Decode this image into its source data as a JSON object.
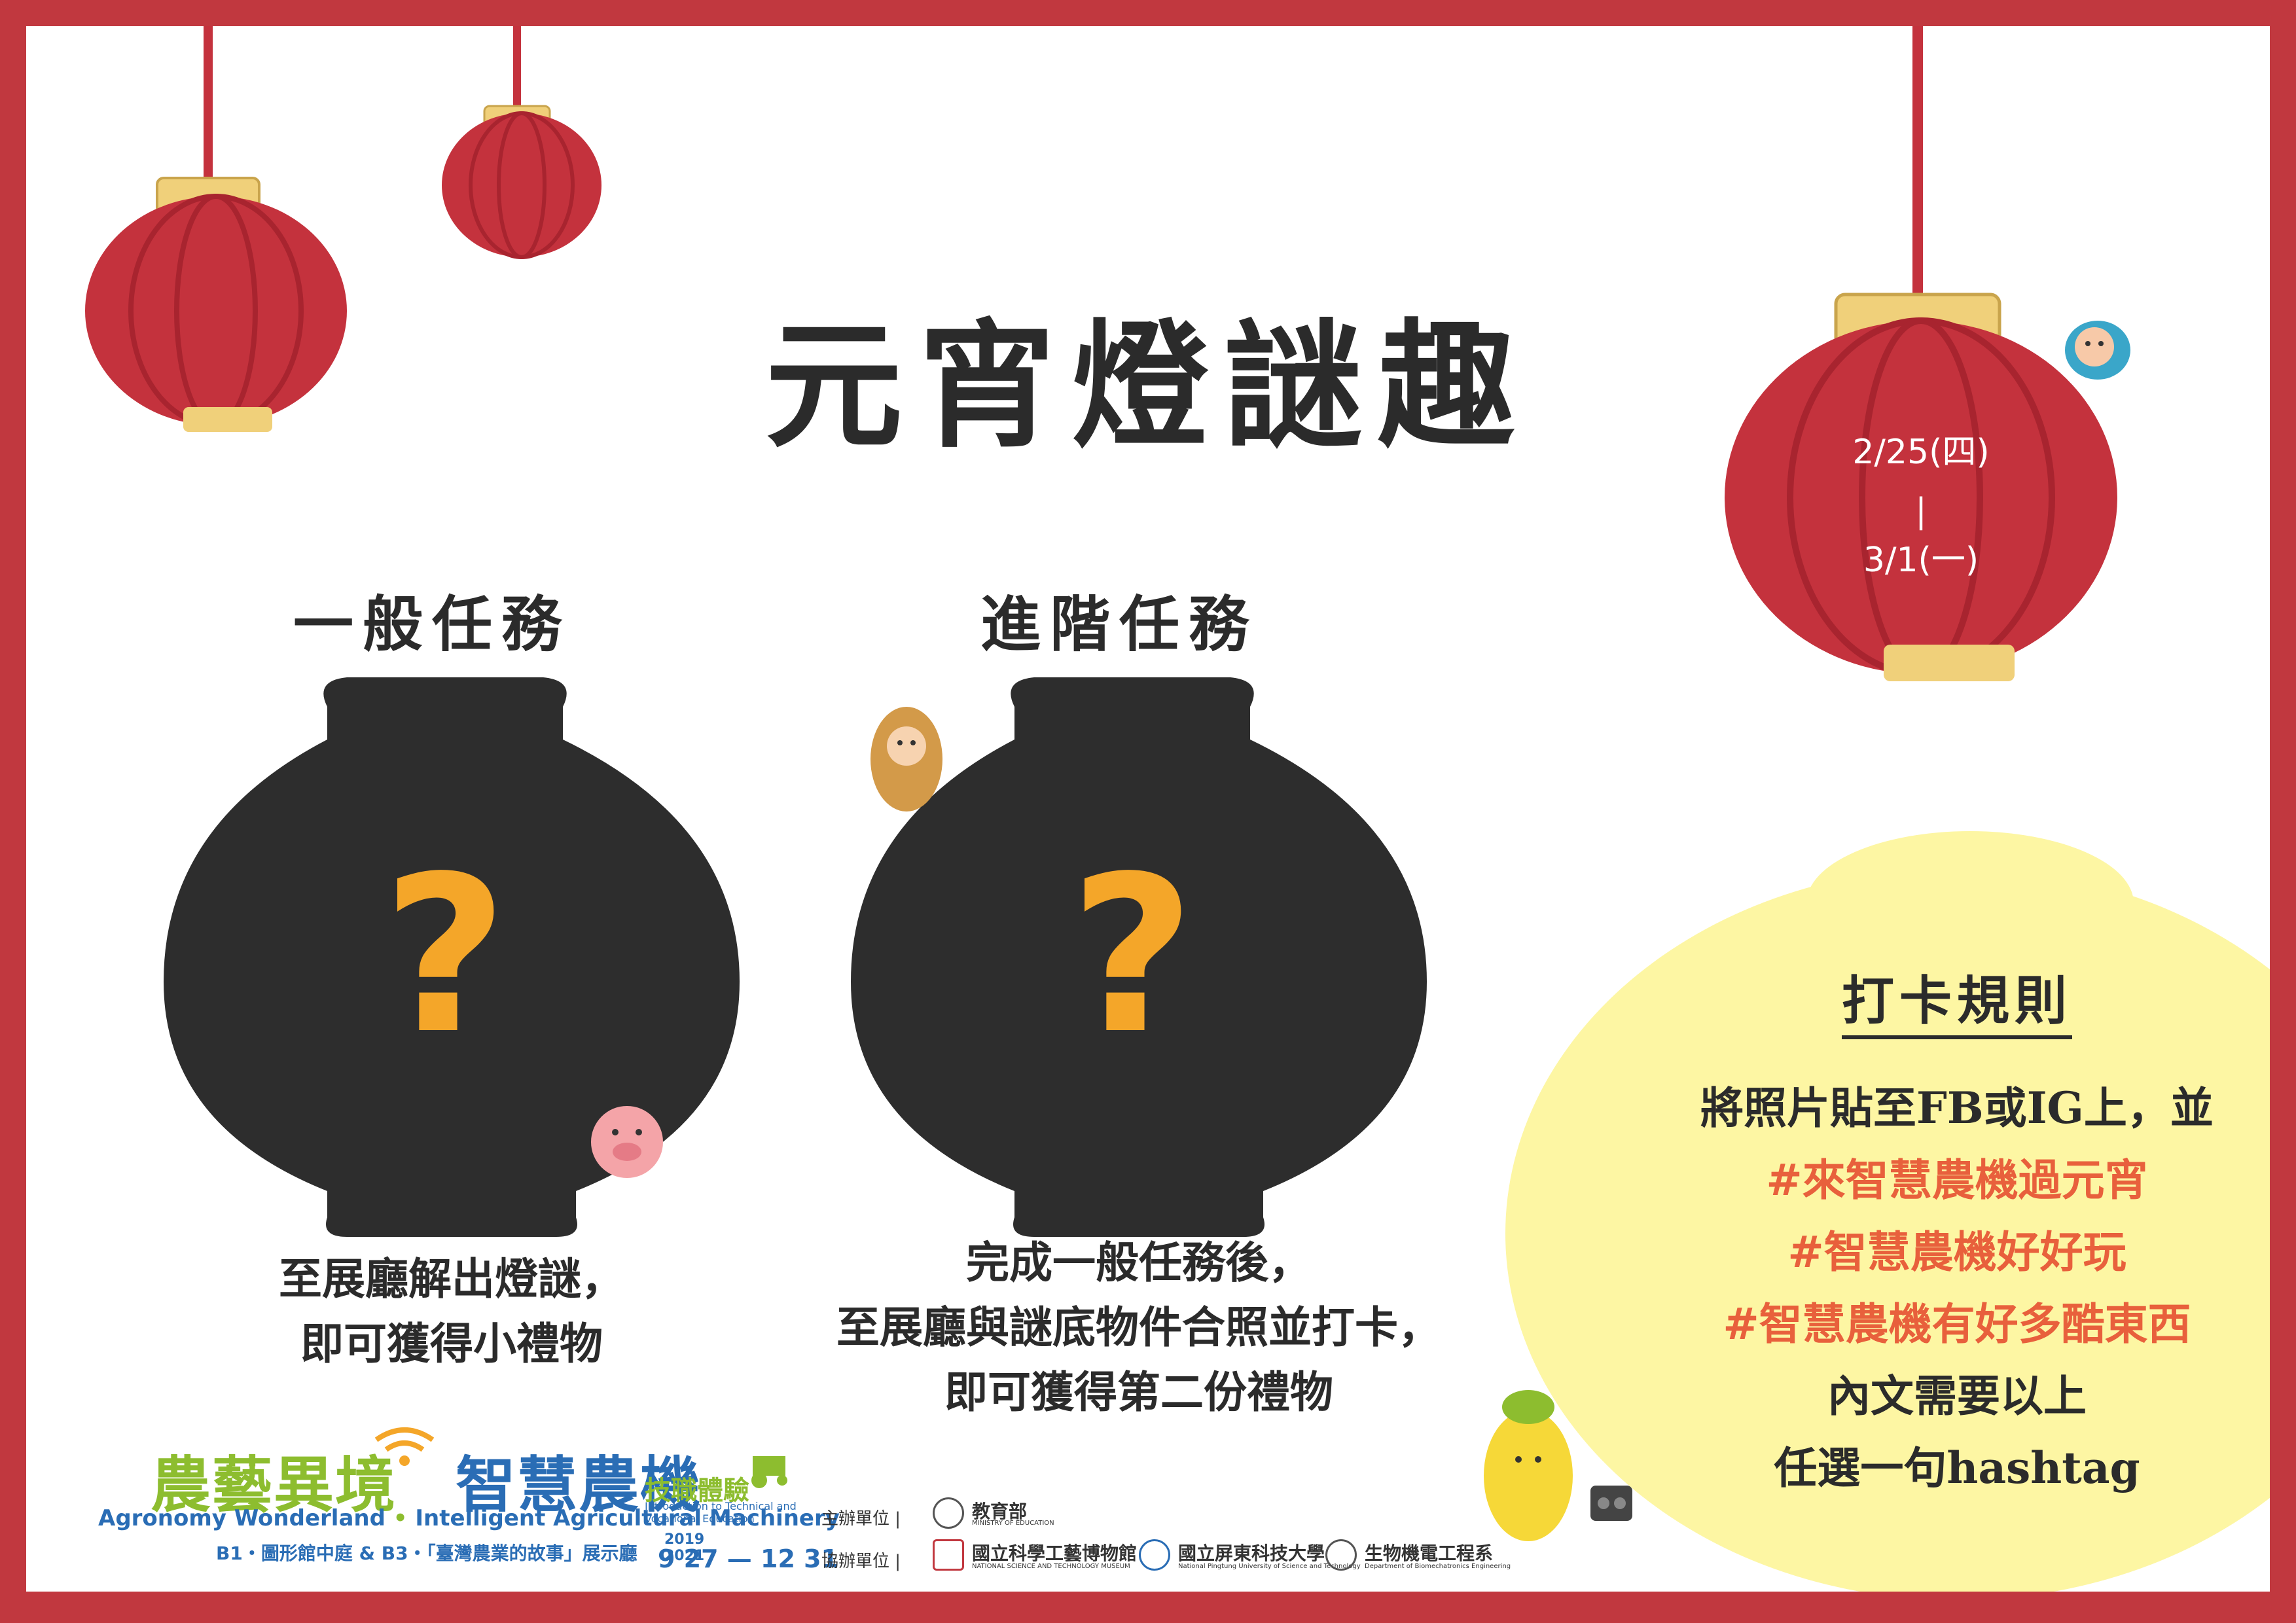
{
  "title": "元宵燈謎趣",
  "date_lantern": {
    "line1": "2/25(四)",
    "separator": "|",
    "line2": "3/1(一)"
  },
  "tasks": [
    {
      "heading": "一般任務",
      "mystery_symbol": "?",
      "description_lines": [
        "至展廳解出燈謎，",
        "即可獲得小禮物"
      ]
    },
    {
      "heading": "進階任務",
      "mystery_symbol": "?",
      "description_lines": [
        "完成一般任務後，",
        "至展廳與謎底物件合照並打卡，",
        "即可獲得第二份禮物"
      ]
    }
  ],
  "checkin_rules": {
    "heading": "打卡規則",
    "lines": [
      {
        "text": "將照片貼至FB或IG上，並",
        "style": "dark"
      },
      {
        "text": "#來智慧農機過元宵",
        "style": "orange"
      },
      {
        "text": "#智慧農機好好玩",
        "style": "orange"
      },
      {
        "text": "#智慧農機有好多酷東西",
        "style": "orange"
      },
      {
        "text": "內文需要以上",
        "style": "dark"
      },
      {
        "text": "任選一句hashtag",
        "style": "dark"
      }
    ]
  },
  "footer": {
    "logo_main_green": "農藝異境",
    "logo_main_blue": "智慧農機",
    "logo_skill": "技職體驗",
    "logo_skill_sub": "Introduction to Technical and Vocational Education",
    "logo_english_1": "Agronomy Wonderland",
    "logo_english_sep": " • ",
    "logo_english_2": "Intelligent Agricultural Machinery",
    "logo_location": "B1・圖形館中庭 & B3・「臺灣農業的故事」展示廳",
    "year_start": "2019",
    "year_end": "2021",
    "date_range": "9 27 — 12 31",
    "host_label": "主辦單位 |",
    "co_label": "協辦單位 |",
    "host_org": "教育部",
    "host_org_en": "MINISTRY OF EDUCATION",
    "co_orgs": [
      {
        "name": "國立科學工藝博物館",
        "en": "NATIONAL SCIENCE AND TECHNOLOGY MUSEUM"
      },
      {
        "name": "國立屏東科技大學",
        "en": "National Pingtung University of Science and Technology"
      },
      {
        "name": "生物機電工程系",
        "en": "Department of Biomechatronics Engineering"
      }
    ]
  },
  "colors": {
    "frame": "#c1383f",
    "lantern_red": "#c4323d",
    "lantern_gold": "#f0d07a",
    "mystery_lantern": "#2d2d2d",
    "question_mark": "#f4a629",
    "rules_bubble": "#fdf6a3",
    "hashtag": "#e8603c"
  }
}
